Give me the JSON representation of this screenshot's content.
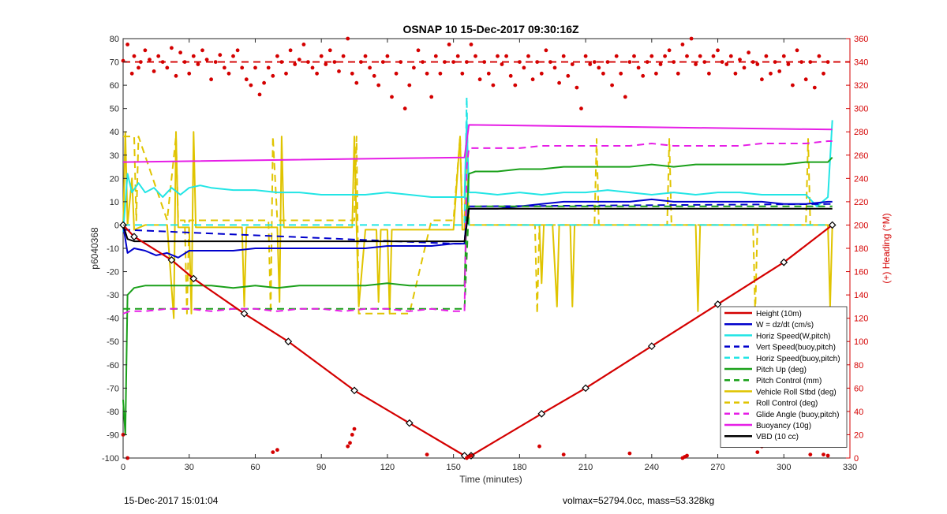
{
  "footer": {
    "left": "15-Dec-2017 15:01:04",
    "right": "volmax=52794.0cc, mass=53.328kg"
  },
  "chart_data": {
    "type": "line",
    "title": "OSNAP 10 15-Dec-2017 09:30:16Z",
    "xlabel": "Time (minutes)",
    "ylabel": "p6040368",
    "y2label": "(+) Heading (°M)",
    "xlim": [
      0,
      330
    ],
    "ylim": [
      -100,
      80
    ],
    "y2lim": [
      0,
      360
    ],
    "xticks": [
      0,
      30,
      60,
      90,
      120,
      150,
      180,
      210,
      240,
      270,
      300,
      330
    ],
    "yticks": [
      -100,
      -90,
      -80,
      -70,
      -60,
      -50,
      -40,
      -30,
      -20,
      -10,
      0,
      10,
      20,
      30,
      40,
      50,
      60,
      70,
      80
    ],
    "y2ticks": [
      0,
      20,
      40,
      60,
      80,
      100,
      120,
      140,
      160,
      180,
      200,
      220,
      240,
      260,
      280,
      300,
      320,
      340,
      360
    ],
    "grid": false,
    "legend_position": "bottom-right",
    "colors": {
      "red": "#d40000",
      "blue": "#0000cc",
      "cyan": "#22e5e5",
      "green": "#1aa01a",
      "yellow": "#e0c400",
      "magenta": "#e61ee6",
      "black": "#000000"
    },
    "legend": [
      {
        "name": "Height (10m)",
        "color": "red",
        "dash": false
      },
      {
        "name": "W = dz/dt (cm/s)",
        "color": "blue",
        "dash": false
      },
      {
        "name": "Horiz Speed(W,pitch)",
        "color": "cyan",
        "dash": false
      },
      {
        "name": "Vert Speed(buoy,pitch)",
        "color": "blue",
        "dash": true
      },
      {
        "name": "Horiz Speed(buoy,pitch)",
        "color": "cyan",
        "dash": true
      },
      {
        "name": "Pitch Up (deg)",
        "color": "green",
        "dash": false
      },
      {
        "name": "Pitch Control (mm)",
        "color": "green",
        "dash": true
      },
      {
        "name": "Vehicle Roll Stbd (deg)",
        "color": "yellow",
        "dash": false
      },
      {
        "name": "Roll Control (deg)",
        "color": "yellow",
        "dash": true
      },
      {
        "name": "Glide Angle (buoy,pitch)",
        "color": "magenta",
        "dash": true
      },
      {
        "name": "Buoyancy (10g)",
        "color": "magenta",
        "dash": false
      },
      {
        "name": "VBD (10 cc)",
        "color": "black",
        "dash": false
      }
    ],
    "series": [
      {
        "name": "Height (10m)",
        "color": "red",
        "dash": false,
        "marker": "diamond",
        "x": [
          0,
          5,
          22,
          32,
          55,
          75,
          105,
          130,
          155,
          158,
          190,
          210,
          240,
          270,
          300,
          322
        ],
        "y": [
          0,
          -5,
          -15,
          -23,
          -38,
          -50,
          -71,
          -85,
          -99,
          -99,
          -81,
          -70,
          -52,
          -34,
          -16,
          0
        ]
      },
      {
        "name": "Vehicle Roll Stbd (deg)",
        "color": "yellow",
        "dash": false,
        "x": [
          0,
          1,
          2,
          4,
          5,
          10,
          20,
          23,
          24,
          25,
          30,
          31,
          32,
          33,
          45,
          54,
          55,
          56,
          70,
          71,
          72,
          73,
          80,
          104,
          105,
          106,
          107,
          110,
          115,
          116,
          117,
          120,
          121,
          122,
          130,
          140,
          150,
          153,
          154,
          155,
          156,
          157,
          175,
          189,
          190,
          191,
          192,
          195,
          197,
          198,
          200,
          203,
          204,
          205,
          260,
          261,
          262,
          263,
          320,
          321,
          322
        ],
        "y": [
          -2,
          40,
          0,
          20,
          -2,
          0,
          0,
          -40,
          40,
          -1,
          -1,
          -38,
          40,
          -1,
          -1,
          -1,
          -35,
          -1,
          -1,
          -33,
          38,
          -1,
          -1,
          -1,
          38,
          -1,
          -35,
          -2,
          -2,
          -33,
          -2,
          -2,
          -38,
          -2,
          -2,
          -2,
          -2,
          38,
          -2,
          -2,
          40,
          0,
          0,
          0,
          -25,
          0,
          0,
          0,
          -35,
          0,
          0,
          0,
          -35,
          0,
          0,
          -37,
          0,
          0,
          0,
          -35,
          0
        ]
      },
      {
        "name": "Roll Control (deg)",
        "color": "yellow",
        "dash": true,
        "x": [
          0,
          5,
          6,
          7,
          20,
          24,
          25,
          28,
          29,
          30,
          66,
          67,
          68,
          70,
          105,
          106,
          107,
          130,
          140,
          150,
          153,
          154,
          155,
          156,
          157,
          187,
          188,
          189,
          214,
          215,
          216,
          230,
          247,
          248,
          249,
          286,
          287,
          288,
          310,
          311,
          312,
          322
        ],
        "y": [
          38,
          38,
          2,
          38,
          2,
          38,
          2,
          2,
          -38,
          2,
          2,
          -38,
          38,
          2,
          2,
          38,
          -38,
          -38,
          2,
          2,
          38,
          2,
          2,
          38,
          0,
          0,
          -38,
          0,
          0,
          37,
          0,
          0,
          0,
          37,
          0,
          0,
          -38,
          0,
          0,
          37,
          0,
          0
        ]
      },
      {
        "name": "Horiz Speed(W,pitch)",
        "color": "cyan",
        "dash": false,
        "x": [
          0,
          2,
          4,
          7,
          10,
          14,
          18,
          22,
          26,
          30,
          35,
          40,
          50,
          60,
          70,
          80,
          90,
          100,
          110,
          120,
          130,
          140,
          150,
          155,
          156,
          157,
          160,
          170,
          180,
          190,
          200,
          210,
          220,
          230,
          240,
          250,
          260,
          270,
          280,
          290,
          300,
          310,
          315,
          320,
          322
        ],
        "y": [
          -3,
          22,
          14,
          18,
          14,
          16,
          12,
          16,
          13,
          16,
          17,
          16,
          15,
          15,
          14,
          14,
          13,
          13,
          13,
          14,
          13,
          12,
          12,
          12,
          45,
          14,
          14,
          13,
          14,
          13,
          14,
          14,
          15,
          14,
          13,
          14,
          13,
          14,
          14,
          13,
          13,
          13,
          8,
          12,
          45
        ]
      },
      {
        "name": "Horiz Speed(buoy,pitch)",
        "color": "cyan",
        "dash": true,
        "x": [
          0,
          150,
          155,
          156,
          157,
          320,
          322
        ],
        "y": [
          0,
          0,
          0,
          55,
          0,
          0,
          0
        ]
      },
      {
        "name": "W = dz/dt (cm/s)",
        "color": "blue",
        "dash": false,
        "x": [
          0,
          2,
          5,
          10,
          15,
          20,
          25,
          30,
          40,
          50,
          60,
          70,
          80,
          90,
          100,
          110,
          120,
          130,
          140,
          150,
          155,
          156,
          157,
          160,
          170,
          180,
          190,
          200,
          210,
          220,
          230,
          240,
          250,
          260,
          270,
          280,
          290,
          300,
          310,
          320,
          322
        ],
        "y": [
          0,
          -12,
          -10,
          -11,
          -13,
          -12,
          -14,
          -11,
          -11,
          -11,
          -10,
          -10,
          -10,
          -10,
          -10,
          -10,
          -9,
          -9,
          -9,
          -8,
          -8,
          5,
          7,
          7,
          7,
          8,
          9,
          10,
          10,
          10,
          10,
          11,
          10,
          10,
          10,
          10,
          10,
          9,
          9,
          10,
          10
        ]
      },
      {
        "name": "Vert Speed(buoy,pitch)",
        "color": "blue",
        "dash": true,
        "x": [
          0,
          150,
          155,
          156,
          157,
          320,
          322
        ],
        "y": [
          -2,
          -8,
          -8,
          5,
          8,
          9,
          9
        ]
      },
      {
        "name": "Pitch Up (deg)",
        "color": "green",
        "dash": false,
        "x": [
          0,
          1,
          2,
          5,
          10,
          20,
          30,
          40,
          50,
          60,
          70,
          80,
          90,
          100,
          110,
          120,
          130,
          140,
          150,
          155,
          156,
          157,
          160,
          170,
          180,
          190,
          200,
          210,
          220,
          230,
          240,
          250,
          260,
          270,
          280,
          290,
          300,
          310,
          320,
          322
        ],
        "y": [
          -75,
          -90,
          -30,
          -27,
          -26,
          -26,
          -26,
          -26,
          -27,
          -26,
          -27,
          -26,
          -26,
          -26,
          -26,
          -25,
          -26,
          -26,
          -26,
          -26,
          5,
          22,
          23,
          23,
          24,
          24,
          25,
          25,
          25,
          25,
          26,
          25,
          26,
          26,
          26,
          26,
          26,
          27,
          27,
          29
        ]
      },
      {
        "name": "Glide Angle (buoy,pitch)",
        "color": "magenta",
        "dash": true,
        "x": [
          0,
          3,
          10,
          20,
          30,
          40,
          50,
          60,
          70,
          80,
          90,
          100,
          110,
          120,
          130,
          140,
          150,
          155,
          156,
          157,
          160,
          170,
          180,
          190,
          200,
          210,
          220,
          230,
          240,
          250,
          260,
          270,
          280,
          290,
          300,
          310,
          320,
          322
        ],
        "y": [
          -38,
          -37,
          -37,
          -36,
          -36,
          -37,
          -36,
          -36,
          -37,
          -36,
          -36,
          -37,
          -36,
          -36,
          -37,
          -36,
          -37,
          -37,
          25,
          33,
          33,
          33,
          33,
          34,
          34,
          34,
          34,
          34,
          35,
          34,
          34,
          34,
          34,
          35,
          35,
          35,
          36,
          36
        ]
      },
      {
        "name": "Buoyancy (10g)",
        "color": "magenta",
        "dash": false,
        "x": [
          0,
          155,
          157,
          322
        ],
        "y": [
          27,
          29,
          43,
          41
        ]
      },
      {
        "name": "VBD (10 cc)",
        "color": "black",
        "dash": false,
        "x": [
          0,
          2,
          5,
          155,
          157,
          322
        ],
        "y": [
          0,
          -6,
          -7,
          -7,
          7,
          7
        ]
      },
      {
        "name": "Pitch Control (mm)",
        "color": "green",
        "dash": true,
        "x": [
          0,
          155,
          157,
          322
        ],
        "y": [
          -36,
          -36,
          8,
          8
        ]
      },
      {
        "name": "Heading",
        "type": "scatter",
        "axis": "right",
        "color": "red",
        "x": [
          0,
          2,
          4,
          5,
          7,
          8,
          10,
          12,
          14,
          16,
          18,
          20,
          22,
          24,
          26,
          28,
          30,
          32,
          34,
          36,
          38,
          40,
          42,
          44,
          46,
          48,
          50,
          52,
          54,
          56,
          58,
          60,
          62,
          64,
          66,
          68,
          70,
          72,
          74,
          76,
          78,
          80,
          82,
          84,
          86,
          88,
          90,
          92,
          94,
          96,
          98,
          100,
          102,
          104,
          106,
          108,
          110,
          112,
          114,
          116,
          118,
          120,
          122,
          124,
          126,
          128,
          130,
          132,
          134,
          136,
          138,
          140,
          142,
          144,
          146,
          148,
          150,
          152,
          154,
          156,
          158,
          160,
          162,
          164,
          166,
          168,
          170,
          172,
          174,
          176,
          178,
          180,
          182,
          184,
          186,
          188,
          190,
          192,
          194,
          196,
          198,
          200,
          202,
          204,
          206,
          208,
          210,
          212,
          214,
          216,
          218,
          220,
          222,
          224,
          226,
          228,
          230,
          232,
          234,
          236,
          238,
          240,
          242,
          244,
          246,
          248,
          250,
          252,
          254,
          256,
          258,
          260,
          262,
          264,
          266,
          268,
          270,
          272,
          274,
          276,
          278,
          280,
          282,
          284,
          286,
          288,
          290,
          292,
          294,
          296,
          298,
          300,
          302,
          304,
          306,
          308,
          310,
          312,
          314,
          316,
          318,
          320,
          0,
          2,
          68,
          70,
          102,
          103,
          104,
          105,
          138,
          156,
          157,
          158,
          189,
          200,
          230,
          254,
          255,
          256,
          288,
          290,
          312,
          318,
          320
        ],
        "y": [
          341,
          355,
          330,
          345,
          335,
          340,
          350,
          342,
          332,
          345,
          340,
          335,
          352,
          328,
          348,
          340,
          330,
          345,
          338,
          350,
          342,
          325,
          340,
          346,
          335,
          330,
          345,
          350,
          335,
          325,
          320,
          335,
          312,
          322,
          335,
          328,
          345,
          340,
          330,
          350,
          338,
          342,
          355,
          340,
          335,
          330,
          345,
          338,
          350,
          340,
          332,
          345,
          360,
          330,
          322,
          340,
          345,
          335,
          328,
          320,
          340,
          345,
          310,
          330,
          340,
          300,
          320,
          335,
          350,
          340,
          330,
          310,
          345,
          330,
          340,
          355,
          340,
          345,
          330,
          340,
          355,
          345,
          325,
          340,
          330,
          320,
          345,
          338,
          345,
          328,
          320,
          340,
          335,
          345,
          325,
          340,
          330,
          350,
          340,
          335,
          322,
          345,
          328,
          338,
          318,
          300,
          345,
          338,
          340,
          335,
          330,
          340,
          320,
          345,
          330,
          310,
          340,
          345,
          335,
          328,
          340,
          345,
          330,
          338,
          345,
          350,
          340,
          330,
          355,
          345,
          360,
          338,
          345,
          340,
          330,
          345,
          350,
          340,
          338,
          345,
          330,
          342,
          335,
          348,
          340,
          338,
          325,
          345,
          330,
          340,
          332,
          345,
          338,
          320,
          350,
          340,
          325,
          340,
          318,
          345,
          330,
          340,
          20,
          0,
          5,
          7,
          10,
          13,
          20,
          25,
          3,
          0,
          1,
          2,
          10,
          3,
          4,
          0,
          1,
          2,
          5,
          10,
          3,
          3,
          2
        ]
      }
    ]
  }
}
